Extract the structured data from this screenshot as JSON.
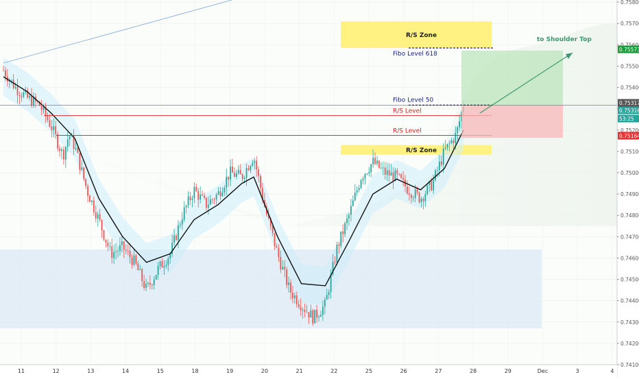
{
  "chart_data": {
    "type": "candlestick",
    "x_labels": [
      "11",
      "12",
      "13",
      "14",
      "15",
      "18",
      "19",
      "20",
      "21",
      "22",
      "25",
      "26",
      "27",
      "28",
      "29",
      "Dec",
      "3",
      "4"
    ],
    "y_ticks": [
      "0.75800",
      "0.75700",
      "0.75600",
      "0.75500",
      "0.75400",
      "0.75300",
      "0.75200",
      "0.75100",
      "0.75000",
      "0.74900",
      "0.74800",
      "0.74700",
      "0.74600",
      "0.74500",
      "0.74400",
      "0.74300",
      "0.74200",
      "0.74100"
    ],
    "ylim": [
      0.741,
      0.7581
    ],
    "price_tags": [
      {
        "label": "0.75573",
        "value": 0.75573,
        "color": "#1a9b3a"
      },
      {
        "label": "0.75317",
        "value": 0.75317,
        "color": "#555555"
      },
      {
        "label": "0.75316",
        "value": 0.75316,
        "color": "#26a69a"
      },
      {
        "label": "53:25",
        "value": 0.7528,
        "color": "#26a69a"
      },
      {
        "label": "0.75164",
        "value": 0.75164,
        "color": "#ef2f2f"
      }
    ],
    "price_path": [
      [
        0,
        0.7548
      ],
      [
        1,
        0.754
      ],
      [
        2,
        0.7535
      ],
      [
        3,
        0.7532
      ],
      [
        4,
        0.7522
      ],
      [
        5,
        0.7508
      ],
      [
        5.5,
        0.7518
      ],
      [
        6,
        0.7512
      ],
      [
        7,
        0.7492
      ],
      [
        8,
        0.7478
      ],
      [
        9,
        0.7462
      ],
      [
        10,
        0.7465
      ],
      [
        11,
        0.7458
      ],
      [
        12,
        0.7445
      ],
      [
        13,
        0.7455
      ],
      [
        14,
        0.7462
      ],
      [
        15,
        0.748
      ],
      [
        16,
        0.7492
      ],
      [
        17,
        0.7485
      ],
      [
        18,
        0.749
      ],
      [
        19,
        0.75
      ],
      [
        20,
        0.7498
      ],
      [
        21,
        0.7508
      ],
      [
        22,
        0.7482
      ],
      [
        23,
        0.7462
      ],
      [
        24,
        0.7445
      ],
      [
        25,
        0.7438
      ],
      [
        26,
        0.7432
      ],
      [
        27,
        0.7438
      ],
      [
        28,
        0.7465
      ],
      [
        29,
        0.748
      ],
      [
        30,
        0.7498
      ],
      [
        31,
        0.7505
      ],
      [
        32,
        0.75
      ],
      [
        33,
        0.7498
      ],
      [
        34,
        0.7492
      ],
      [
        35,
        0.7488
      ],
      [
        36,
        0.7495
      ],
      [
        37,
        0.751
      ],
      [
        38,
        0.7518
      ],
      [
        38.6,
        0.7532
      ]
    ],
    "moving_average": [
      [
        0,
        0.7545
      ],
      [
        2,
        0.7538
      ],
      [
        4,
        0.7528
      ],
      [
        6,
        0.7516
      ],
      [
        8,
        0.7488
      ],
      [
        10,
        0.747
      ],
      [
        12,
        0.7458
      ],
      [
        14,
        0.7462
      ],
      [
        16,
        0.7478
      ],
      [
        18,
        0.7485
      ],
      [
        20,
        0.7495
      ],
      [
        21,
        0.7498
      ],
      [
        23,
        0.747
      ],
      [
        25,
        0.7448
      ],
      [
        27,
        0.7447
      ],
      [
        29,
        0.7468
      ],
      [
        31,
        0.749
      ],
      [
        33,
        0.7497
      ],
      [
        35,
        0.7492
      ],
      [
        37,
        0.7502
      ],
      [
        38.6,
        0.752
      ]
    ],
    "levels": [
      {
        "label": "R/S Level",
        "value": 0.75268,
        "color": "#e03131"
      },
      {
        "label": "R/S Level",
        "value": 0.75175,
        "color": "#e03131"
      },
      {
        "label": "",
        "value": 0.75317,
        "color": "#26a69a"
      }
    ],
    "zones": [
      {
        "label": "R/S Zone",
        "from": 0.75585,
        "to": 0.7571,
        "color": "#fff176"
      },
      {
        "label": "R/S Zone",
        "from": 0.75085,
        "to": 0.7513,
        "color": "#fff176"
      },
      {
        "label": "",
        "from": 0.7427,
        "to": 0.7464,
        "color": "#dbe8f6"
      }
    ],
    "fibo": [
      {
        "label": "Fibo Level 618",
        "value": 0.75585
      },
      {
        "label": "Fibo Level 50",
        "value": 0.75317
      }
    ],
    "position": {
      "entry": 0.75317,
      "target": 0.75573,
      "stop": 0.75164
    },
    "arrow_label": "to Shoulder Top",
    "grid": true,
    "legend": "none"
  }
}
